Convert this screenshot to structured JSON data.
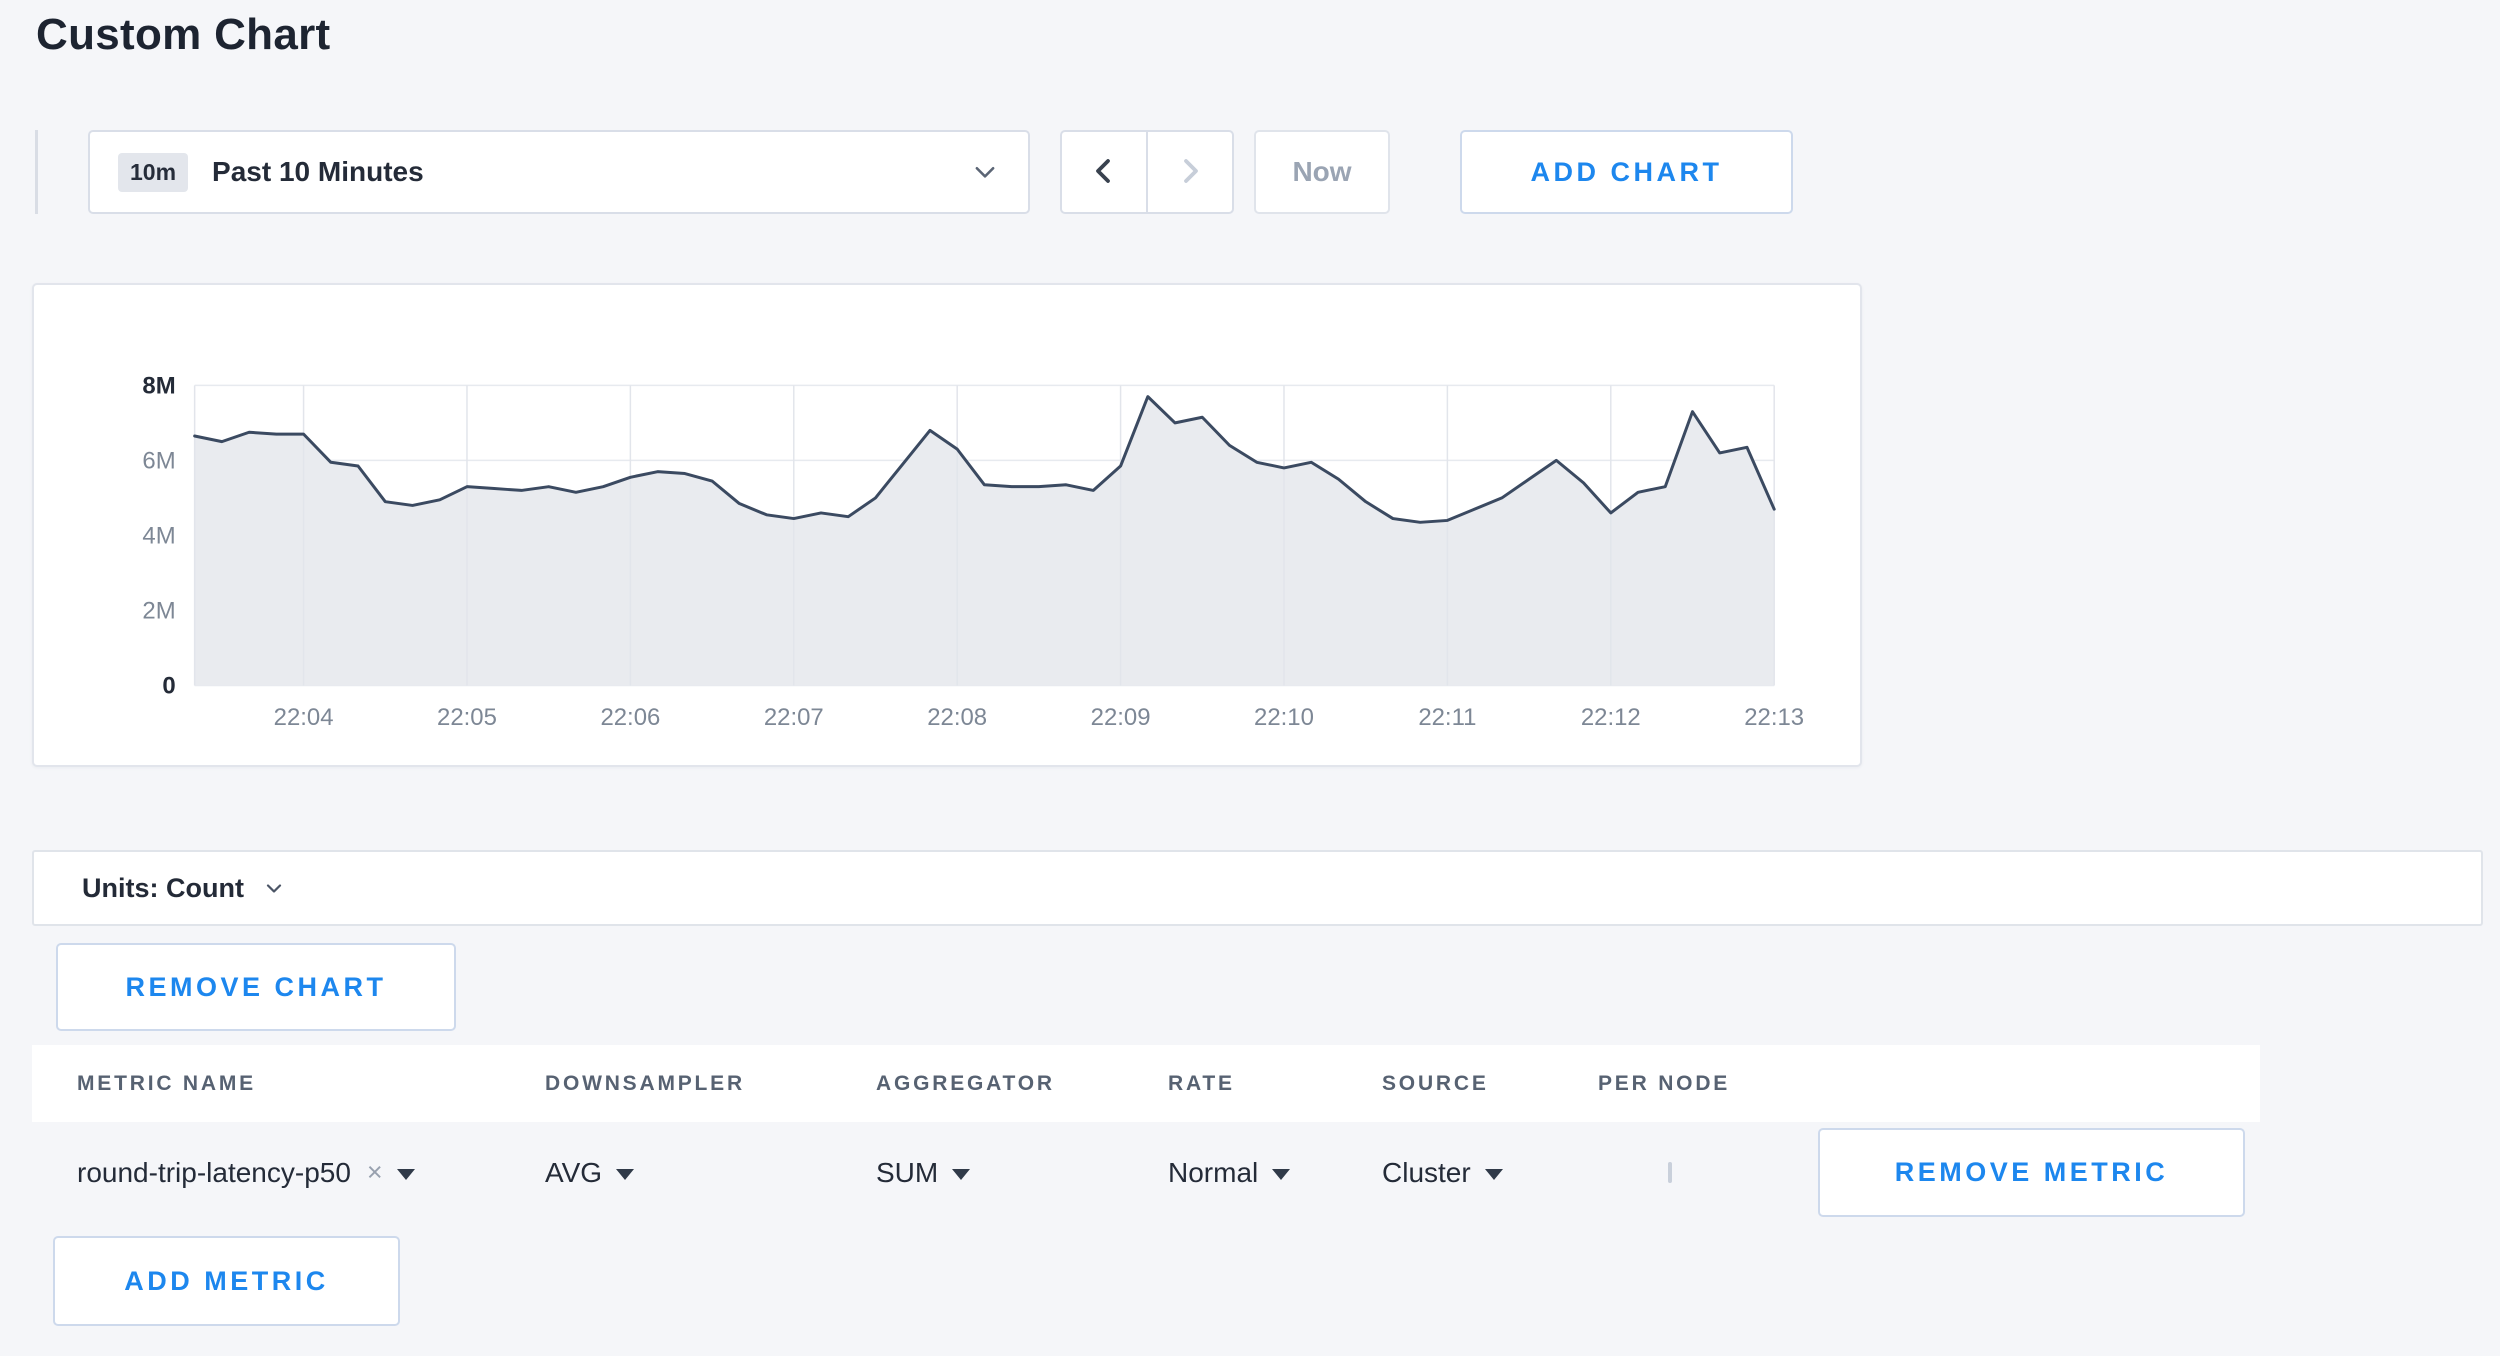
{
  "page": {
    "title": "Custom Chart"
  },
  "colors": {
    "accent_blue": "#1d87ee",
    "line_color": "#3b4a61",
    "area_fill": "#e9ebef",
    "grid_color": "#e2e5eb"
  },
  "toolbar": {
    "time_badge": "10m",
    "time_label": "Past 10 Minutes",
    "now_label": "Now",
    "add_chart_label": "ADD CHART"
  },
  "units_bar": {
    "label": "Units: Count"
  },
  "buttons": {
    "remove_chart": "REMOVE CHART",
    "remove_metric": "REMOVE METRIC",
    "add_metric": "ADD METRIC"
  },
  "icons": {
    "clear_icon": "×"
  },
  "metrics_table": {
    "headers": [
      "METRIC NAME",
      "DOWNSAMPLER",
      "AGGREGATOR",
      "RATE",
      "SOURCE",
      "PER NODE"
    ],
    "rows": [
      {
        "metric_name": "round-trip-latency-p50",
        "downsampler": "AVG",
        "aggregator": "SUM",
        "rate": "Normal",
        "source": "Cluster",
        "per_node_checked": false
      }
    ]
  },
  "chart_data": {
    "type": "area",
    "title": "",
    "xlabel": "",
    "ylabel": "",
    "unit": "Count",
    "x_ticks": [
      "22:04",
      "22:05",
      "22:06",
      "22:07",
      "22:08",
      "22:09",
      "22:10",
      "22:11",
      "22:12",
      "22:13"
    ],
    "y_tick_labels": [
      "0",
      "2M",
      "4M",
      "6M",
      "8M"
    ],
    "y_tick_values_millions": [
      0,
      2,
      4,
      6,
      8
    ],
    "ylim_millions": [
      0,
      8
    ],
    "first_tick_index": 4,
    "points_per_tick": 6,
    "grid": true,
    "legend": "none",
    "line_color": "#3b4a61",
    "fill_color": "#e9ebef",
    "series": [
      {
        "name": "round-trip-latency-p50",
        "values_millions": [
          6.65,
          6.5,
          6.75,
          6.7,
          6.7,
          5.95,
          5.85,
          4.9,
          4.8,
          4.95,
          5.3,
          5.25,
          5.2,
          5.3,
          5.15,
          5.3,
          5.55,
          5.7,
          5.65,
          5.45,
          4.85,
          4.55,
          4.45,
          4.6,
          4.5,
          5.0,
          5.9,
          6.8,
          6.3,
          5.35,
          5.3,
          5.3,
          5.35,
          5.2,
          5.85,
          7.7,
          7.0,
          7.15,
          6.4,
          5.95,
          5.8,
          5.95,
          5.5,
          4.9,
          4.45,
          4.35,
          4.4,
          4.7,
          5.0,
          5.5,
          6.0,
          5.4,
          4.6,
          5.15,
          5.3,
          7.3,
          6.2,
          6.35,
          4.7
        ]
      }
    ]
  }
}
